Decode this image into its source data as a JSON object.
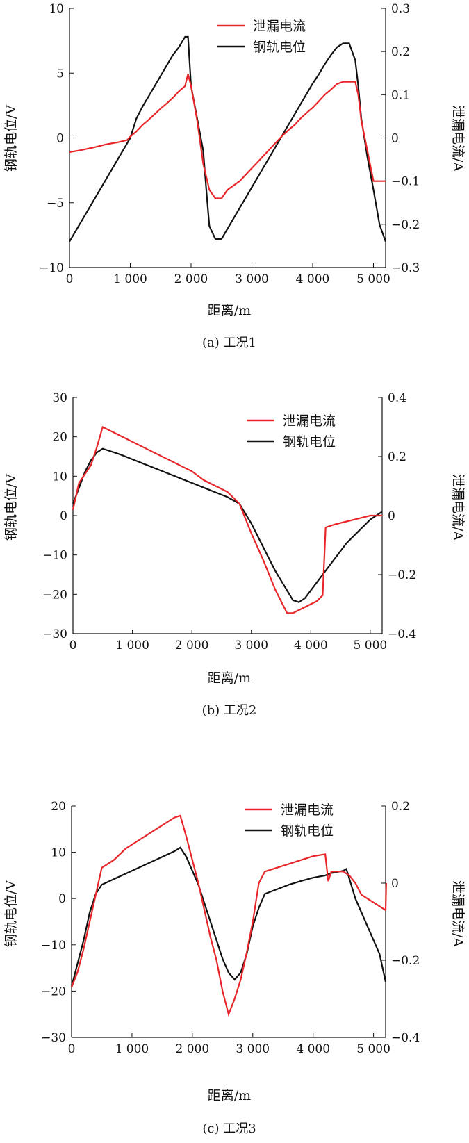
{
  "colors": {
    "leakage": "#e8262a",
    "rail": "#111111"
  },
  "chart_data": [
    {
      "type": "line",
      "caption": "(a) 工况1",
      "xlabel": "距离/m",
      "ylabel_left": "钢轨电位/V",
      "ylabel_right": "泄漏电流/A",
      "xlim": [
        0,
        5200
      ],
      "ylim_left": [
        -10,
        10
      ],
      "ylim_right": [
        -0.3,
        0.3
      ],
      "x_ticks": [
        0,
        1000,
        2000,
        3000,
        4000,
        5000
      ],
      "x_tick_labels": [
        "0",
        "1 000",
        "2 000",
        "3 000",
        "4 000",
        "5 000"
      ],
      "y_ticks_left": [
        -10,
        -5,
        0,
        5,
        10
      ],
      "y_tick_labels_left": [
        "−10",
        "−5",
        "0",
        "5",
        "10"
      ],
      "y_ticks_right": [
        -0.3,
        -0.2,
        -0.1,
        0,
        0.1,
        0.2,
        0.3
      ],
      "y_tick_labels_right": [
        "−0.3",
        "−0.2",
        "−0.1",
        "0",
        "0.1",
        "0.2",
        "0.3"
      ],
      "legend": [
        "泄漏电流",
        "钢轨电位"
      ],
      "legend_position": "top-center",
      "series": [
        {
          "name": "泄漏电流",
          "axis": "right",
          "color": "#e8262a",
          "x": [
            0,
            200,
            400,
            600,
            800,
            950,
            1000,
            1100,
            1200,
            1300,
            1400,
            1500,
            1600,
            1700,
            1800,
            1900,
            1950,
            2000,
            2100,
            2200,
            2300,
            2400,
            2500,
            2600,
            2700,
            2800,
            2900,
            3000,
            3100,
            3200,
            3300,
            3400,
            3500,
            3600,
            3700,
            3800,
            3900,
            4000,
            4100,
            4200,
            4300,
            4400,
            4500,
            4600,
            4700,
            4750,
            4800,
            4900,
            5000,
            5100,
            5150,
            5200
          ],
          "y": [
            -0.033,
            -0.028,
            -0.022,
            -0.015,
            -0.01,
            -0.005,
            0.003,
            0.015,
            0.03,
            0.042,
            0.055,
            0.068,
            0.08,
            0.093,
            0.108,
            0.12,
            0.148,
            0.12,
            0.04,
            -0.06,
            -0.12,
            -0.14,
            -0.14,
            -0.12,
            -0.11,
            -0.1,
            -0.085,
            -0.07,
            -0.055,
            -0.04,
            -0.025,
            -0.01,
            0.005,
            0.018,
            0.03,
            0.045,
            0.058,
            0.07,
            0.085,
            0.1,
            0.112,
            0.125,
            0.13,
            0.13,
            0.13,
            0.1,
            0.04,
            -0.03,
            -0.1,
            -0.1,
            -0.1,
            -0.1
          ]
        },
        {
          "name": "钢轨电位",
          "axis": "left",
          "color": "#111111",
          "x": [
            0,
            500,
            1000,
            1100,
            1200,
            1300,
            1400,
            1500,
            1600,
            1700,
            1800,
            1900,
            1950,
            2000,
            2100,
            2200,
            2250,
            2300,
            2400,
            2500,
            2600,
            2700,
            2800,
            2900,
            3000,
            3100,
            3200,
            3300,
            3400,
            3500,
            3600,
            3700,
            3800,
            3900,
            4000,
            4100,
            4200,
            4300,
            4400,
            4500,
            4600,
            4700,
            4750,
            4800,
            4900,
            5000,
            5100,
            5200
          ],
          "y": [
            -8,
            -4,
            0,
            1.5,
            2.4,
            3.2,
            4,
            4.8,
            5.6,
            6.4,
            7.0,
            7.8,
            7.8,
            4.0,
            1.5,
            -1.0,
            -4.0,
            -6.8,
            -7.8,
            -7.8,
            -7.0,
            -6.2,
            -5.4,
            -4.6,
            -3.8,
            -3.0,
            -2.2,
            -1.4,
            -0.6,
            0.2,
            1.0,
            1.8,
            2.6,
            3.4,
            4.2,
            4.9,
            5.7,
            6.4,
            7.0,
            7.3,
            7.3,
            6.0,
            4.0,
            1.5,
            -1.5,
            -4.0,
            -6.7,
            -8.0
          ]
        }
      ]
    },
    {
      "type": "line",
      "caption": "(b) 工况2",
      "xlabel": "距离/m",
      "ylabel_left": "钢轨电位/V",
      "ylabel_right": "泄漏电流/A",
      "xlim": [
        0,
        5200
      ],
      "ylim_left": [
        -30,
        30
      ],
      "ylim_right": [
        -0.4,
        0.4
      ],
      "x_ticks": [
        0,
        1000,
        2000,
        3000,
        4000,
        5000
      ],
      "x_tick_labels": [
        "0",
        "1 000",
        "2 000",
        "3 000",
        "4 000",
        "5 000"
      ],
      "y_ticks_left": [
        -30,
        -20,
        -10,
        0,
        10,
        20,
        30
      ],
      "y_tick_labels_left": [
        "−30",
        "−20",
        "−10",
        "0",
        "10",
        "20",
        "30"
      ],
      "y_ticks_right": [
        -0.4,
        -0.2,
        0,
        0.2,
        0.4
      ],
      "y_tick_labels_right": [
        "−0.4",
        "−0.2",
        "0",
        "0.2",
        "0.4"
      ],
      "legend": [
        "泄漏电流",
        "钢轨电位"
      ],
      "legend_position": "top-right",
      "series": [
        {
          "name": "泄漏电流",
          "axis": "right",
          "color": "#e8262a",
          "x": [
            0,
            100,
            200,
            300,
            400,
            500,
            600,
            700,
            800,
            900,
            1000,
            1200,
            1400,
            1600,
            1800,
            2000,
            2200,
            2400,
            2600,
            2800,
            3000,
            3200,
            3400,
            3600,
            3700,
            3800,
            3900,
            4000,
            4100,
            4200,
            4250,
            4400,
            4600,
            4800,
            5000,
            5200
          ],
          "y": [
            0.02,
            0.11,
            0.14,
            0.17,
            0.23,
            0.3,
            0.29,
            0.28,
            0.27,
            0.26,
            0.25,
            0.23,
            0.21,
            0.19,
            0.17,
            0.15,
            0.12,
            0.1,
            0.08,
            0.04,
            -0.06,
            -0.15,
            -0.25,
            -0.33,
            -0.33,
            -0.32,
            -0.31,
            -0.3,
            -0.29,
            -0.27,
            -0.04,
            -0.03,
            -0.02,
            -0.01,
            0.0,
            0.0
          ]
        },
        {
          "name": "钢轨电位",
          "axis": "left",
          "color": "#111111",
          "x": [
            0,
            100,
            200,
            300,
            400,
            500,
            600,
            700,
            800,
            1000,
            1200,
            1400,
            1600,
            1800,
            2000,
            2200,
            2400,
            2600,
            2800,
            3000,
            3200,
            3400,
            3600,
            3700,
            3800,
            3900,
            4000,
            4100,
            4200,
            4400,
            4600,
            4800,
            5000,
            5200
          ],
          "y": [
            3,
            7,
            11,
            14,
            16,
            17,
            16.5,
            16,
            15.5,
            14.3,
            13.1,
            11.9,
            10.7,
            9.5,
            8.3,
            7.1,
            5.9,
            4.7,
            3,
            -2,
            -8,
            -14,
            -19,
            -21.5,
            -22,
            -21,
            -19,
            -17,
            -15,
            -11,
            -7,
            -4,
            -1,
            1
          ]
        }
      ]
    },
    {
      "type": "line",
      "caption": "(c) 工况3",
      "xlabel": "距离/m",
      "ylabel_left": "钢轨电位/V",
      "ylabel_right": "泄漏电流/A",
      "xlim": [
        0,
        5200
      ],
      "ylim_left": [
        -30,
        20
      ],
      "ylim_right": [
        -0.4,
        0.2
      ],
      "x_ticks": [
        0,
        1000,
        2000,
        3000,
        4000,
        5000
      ],
      "x_tick_labels": [
        "0",
        "1 000",
        "2 000",
        "3 000",
        "4 000",
        "5 000"
      ],
      "y_ticks_left": [
        -30,
        -20,
        -10,
        0,
        10,
        20
      ],
      "y_tick_labels_left": [
        "−30",
        "−20",
        "−10",
        "0",
        "10",
        "20"
      ],
      "y_ticks_right": [
        -0.4,
        -0.2,
        0,
        0.2
      ],
      "y_tick_labels_right": [
        "−0.4",
        "−0.2",
        "0",
        "0.2"
      ],
      "legend": [
        "泄漏电流",
        "钢轨电位"
      ],
      "legend_position": "top-right",
      "series": [
        {
          "name": "泄漏电流",
          "axis": "right",
          "color": "#e8262a",
          "x": [
            0,
            100,
            200,
            300,
            400,
            500,
            700,
            900,
            1100,
            1300,
            1500,
            1700,
            1800,
            1900,
            2000,
            2100,
            2200,
            2300,
            2400,
            2500,
            2600,
            2700,
            2800,
            2900,
            3000,
            3100,
            3200,
            3400,
            3600,
            3800,
            4000,
            4200,
            4250,
            4300,
            4500,
            4600,
            4700,
            4800,
            5000,
            5200,
            5210
          ],
          "y": [
            -0.27,
            -0.23,
            -0.17,
            -0.1,
            -0.03,
            0.04,
            0.06,
            0.09,
            0.11,
            0.13,
            0.15,
            0.17,
            0.175,
            0.12,
            0.06,
            0.0,
            -0.07,
            -0.14,
            -0.2,
            -0.28,
            -0.34,
            -0.3,
            -0.25,
            -0.18,
            -0.1,
            0.0,
            0.03,
            0.04,
            0.05,
            0.06,
            0.07,
            0.075,
            0.005,
            0.03,
            0.03,
            0.02,
            0.0,
            -0.03,
            -0.05,
            -0.07,
            0.0
          ]
        },
        {
          "name": "钢轨电位",
          "axis": "left",
          "color": "#111111",
          "x": [
            0,
            100,
            200,
            300,
            400,
            500,
            700,
            900,
            1100,
            1300,
            1500,
            1700,
            1800,
            1900,
            2000,
            2100,
            2200,
            2300,
            2400,
            2500,
            2600,
            2700,
            2800,
            2900,
            3000,
            3100,
            3200,
            3400,
            3600,
            3800,
            4000,
            4200,
            4300,
            4500,
            4550,
            4700,
            4900,
            5100,
            5200
          ],
          "y": [
            -19,
            -14,
            -9,
            -3,
            1,
            3,
            4.2,
            5.4,
            6.6,
            7.8,
            9,
            10.2,
            11,
            9,
            6,
            3,
            -1,
            -5,
            -9,
            -13,
            -16,
            -17.5,
            -16,
            -12,
            -6,
            -2,
            1,
            2,
            3,
            3.8,
            4.5,
            5,
            5.5,
            6,
            6.4,
            0,
            -6,
            -12,
            -18
          ]
        }
      ]
    }
  ]
}
